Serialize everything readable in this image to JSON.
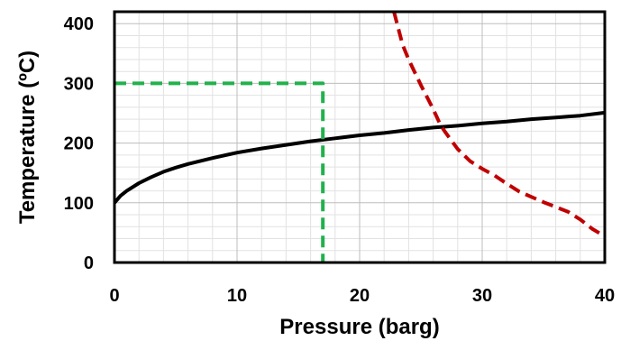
{
  "chart_data": {
    "type": "line",
    "xlabel": "Pressure (barg)",
    "ylabel": "Temperature (ºC)",
    "xlim": [
      0,
      40
    ],
    "ylim": [
      0,
      420
    ],
    "x_ticks": [
      "0",
      "10",
      "20",
      "30",
      "40"
    ],
    "y_ticks": [
      "0",
      "100",
      "200",
      "300",
      "400"
    ],
    "grid": true,
    "series": [
      {
        "color": "#000000",
        "style": "solid",
        "x": [
          0,
          0.5,
          1,
          2,
          3,
          4,
          5,
          6,
          8,
          10,
          12,
          14,
          16,
          18,
          20,
          22,
          24,
          26,
          28,
          30,
          32,
          34,
          36,
          38,
          40
        ],
        "y": [
          100,
          112,
          120,
          133,
          143,
          152,
          159,
          165,
          175,
          184,
          191,
          197,
          203,
          208,
          213,
          217,
          222,
          226,
          229,
          233,
          236,
          240,
          243,
          246,
          251
        ]
      },
      {
        "color": "#C00000",
        "style": "dashed",
        "x": [
          22.8,
          23.5,
          24,
          25,
          26,
          26.6,
          27,
          28,
          29,
          30,
          31,
          32,
          33,
          34,
          35,
          36,
          37,
          38,
          39,
          40
        ],
        "y": [
          420,
          365,
          340,
          297,
          257,
          230,
          218,
          190,
          170,
          157,
          146,
          132,
          119,
          110,
          101,
          93,
          85,
          72,
          56,
          44
        ]
      },
      {
        "color": "#22B14C",
        "style": "dashed",
        "x": [
          0,
          17,
          17
        ],
        "y": [
          300,
          300,
          0
        ]
      }
    ]
  }
}
